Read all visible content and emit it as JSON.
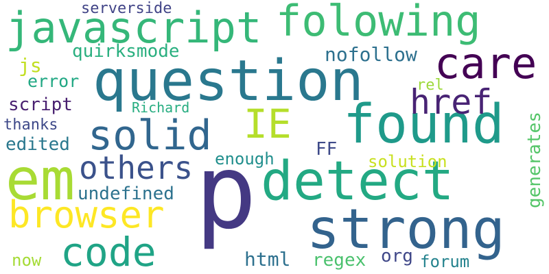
{
  "words": [
    {
      "text": "p",
      "color": "#443983"
    },
    {
      "text": "question",
      "color": "#2a788e"
    },
    {
      "text": "found",
      "color": "#1f9a8a"
    },
    {
      "text": "detect",
      "color": "#23a983"
    },
    {
      "text": "strong",
      "color": "#33638d"
    },
    {
      "text": "em",
      "color": "#a8db34"
    },
    {
      "text": "javascript",
      "color": "#35b779"
    },
    {
      "text": "folowing",
      "color": "#3dbc74"
    },
    {
      "text": "care",
      "color": "#440154"
    },
    {
      "text": "solid",
      "color": "#31668e"
    },
    {
      "text": "browser",
      "color": "#fde725"
    },
    {
      "text": "IE",
      "color": "#b5de2b"
    },
    {
      "text": "href",
      "color": "#482374"
    },
    {
      "text": "code",
      "color": "#20a486"
    },
    {
      "text": "others",
      "color": "#3b528b"
    },
    {
      "text": "nofollow",
      "color": "#2d708e"
    },
    {
      "text": "quirksmode",
      "color": "#29af7f"
    },
    {
      "text": "undefined",
      "color": "#2c728e"
    },
    {
      "text": "script",
      "color": "#481f70"
    },
    {
      "text": "error",
      "color": "#22a884"
    },
    {
      "text": "edited",
      "color": "#2a788e"
    },
    {
      "text": "thanks",
      "color": "#3e4989"
    },
    {
      "text": "serverside",
      "color": "#414487"
    },
    {
      "text": "js",
      "color": "#c2df23"
    },
    {
      "text": "rel",
      "color": "#9dd93b"
    },
    {
      "text": "Richard",
      "color": "#27ad81"
    },
    {
      "text": "FF",
      "color": "#3e4a89"
    },
    {
      "text": "enough",
      "color": "#218f8d"
    },
    {
      "text": "solution",
      "color": "#c8e020"
    },
    {
      "text": "generates",
      "color": "#54c568"
    },
    {
      "text": "html",
      "color": "#2d708e"
    },
    {
      "text": "regex",
      "color": "#4ac16d"
    },
    {
      "text": "org",
      "color": "#3f4788"
    },
    {
      "text": "forum",
      "color": "#25838e"
    },
    {
      "text": "now",
      "color": "#a5db36"
    }
  ]
}
